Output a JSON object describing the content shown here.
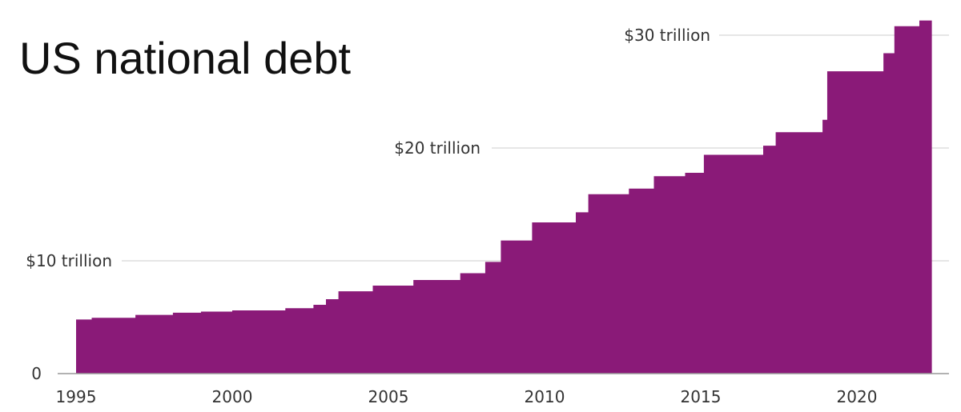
{
  "chart_data": {
    "type": "area",
    "title": "US national debt",
    "xlabel": "",
    "ylabel": "",
    "xlim": [
      1995,
      2022.4
    ],
    "ylim": [
      0,
      31.5
    ],
    "x_ticks": [
      {
        "value": 1995,
        "label": "1995"
      },
      {
        "value": 2000,
        "label": "2000"
      },
      {
        "value": 2005,
        "label": "2005"
      },
      {
        "value": 2010,
        "label": "2010"
      },
      {
        "value": 2015,
        "label": "2015"
      },
      {
        "value": 2020,
        "label": "2020"
      }
    ],
    "y_ticks": [
      {
        "value": 0,
        "label": "0"
      },
      {
        "value": 10,
        "label": "$10 trillion"
      },
      {
        "value": 20,
        "label": "$20 trillion"
      },
      {
        "value": 30,
        "label": "$30 trillion"
      }
    ],
    "grid": true,
    "legend": "none",
    "step": true,
    "color": "#8a1a78",
    "series": [
      {
        "values": [
          {
            "x": 1995.0,
            "y": 4.8
          },
          {
            "x": 1995.5,
            "y": 4.95
          },
          {
            "x": 1996.9,
            "y": 5.2
          },
          {
            "x": 1998.1,
            "y": 5.4
          },
          {
            "x": 1999.0,
            "y": 5.5
          },
          {
            "x": 2000.0,
            "y": 5.6
          },
          {
            "x": 2001.7,
            "y": 5.8
          },
          {
            "x": 2002.6,
            "y": 6.1
          },
          {
            "x": 2003.0,
            "y": 6.6
          },
          {
            "x": 2003.4,
            "y": 7.3
          },
          {
            "x": 2004.5,
            "y": 7.8
          },
          {
            "x": 2005.8,
            "y": 8.3
          },
          {
            "x": 2007.3,
            "y": 8.9
          },
          {
            "x": 2008.1,
            "y": 9.9
          },
          {
            "x": 2008.6,
            "y": 11.8
          },
          {
            "x": 2009.6,
            "y": 13.4
          },
          {
            "x": 2011.0,
            "y": 14.3
          },
          {
            "x": 2011.4,
            "y": 15.9
          },
          {
            "x": 2012.7,
            "y": 16.4
          },
          {
            "x": 2013.5,
            "y": 17.5
          },
          {
            "x": 2014.5,
            "y": 17.8
          },
          {
            "x": 2015.1,
            "y": 19.4
          },
          {
            "x": 2017.0,
            "y": 20.2
          },
          {
            "x": 2017.4,
            "y": 21.4
          },
          {
            "x": 2018.9,
            "y": 22.5
          },
          {
            "x": 2019.05,
            "y": 26.8
          },
          {
            "x": 2020.85,
            "y": 28.4
          },
          {
            "x": 2021.2,
            "y": 30.8
          },
          {
            "x": 2022.0,
            "y": 31.3
          }
        ]
      }
    ]
  }
}
